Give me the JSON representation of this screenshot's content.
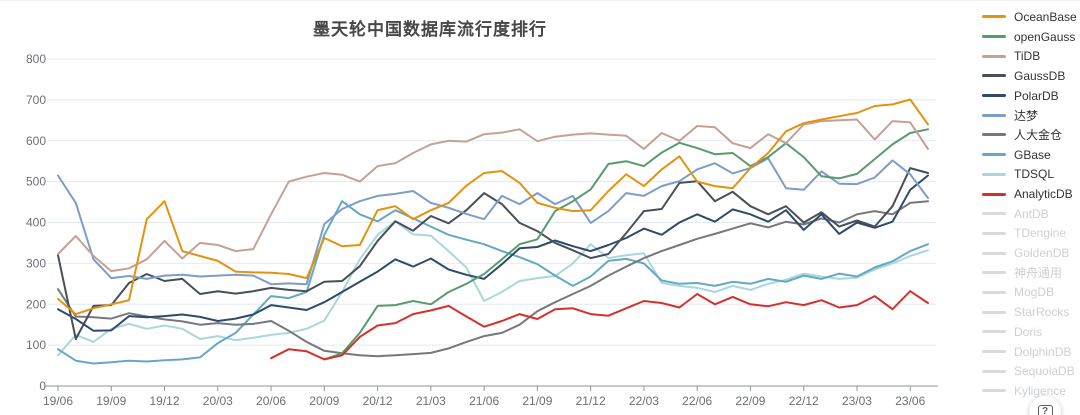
{
  "page": {
    "title": "墨天轮中国数据库流行度排行",
    "help_glyph": "?"
  },
  "chart_data": {
    "type": "line",
    "title": "墨天轮中国数据库流行度排行",
    "xlabel": "",
    "ylabel": "",
    "ylim": [
      0,
      800
    ],
    "y_ticks": [
      0,
      100,
      200,
      300,
      400,
      500,
      600,
      700,
      800
    ],
    "grid": true,
    "legend_position": "right",
    "x": [
      "19/06",
      "19/07",
      "19/08",
      "19/09",
      "19/10",
      "19/11",
      "19/12",
      "20/01",
      "20/02",
      "20/03",
      "20/04",
      "20/05",
      "20/06",
      "20/07",
      "20/08",
      "20/09",
      "20/10",
      "20/11",
      "20/12",
      "21/01",
      "21/02",
      "21/03",
      "21/04",
      "21/05",
      "21/06",
      "21/07",
      "21/08",
      "21/09",
      "21/10",
      "21/11",
      "21/12",
      "22/01",
      "22/02",
      "22/03",
      "22/04",
      "22/05",
      "22/06",
      "22/07",
      "22/08",
      "22/09",
      "22/10",
      "22/11",
      "22/12",
      "23/01",
      "23/02",
      "23/03",
      "23/04",
      "23/05",
      "23/06",
      "23/07"
    ],
    "x_tick_labels": [
      "19/06",
      "19/09",
      "19/12",
      "20/03",
      "20/06",
      "20/09",
      "20/12",
      "21/03",
      "21/06",
      "21/09",
      "21/12",
      "22/03",
      "22/06",
      "22/09",
      "22/12",
      "23/03",
      "23/06"
    ],
    "series": [
      {
        "name": "OceanBase",
        "color": "#e2930f",
        "values": [
          213,
          176,
          190,
          200,
          210,
          408,
          452,
          330,
          318,
          306,
          280,
          278,
          277,
          274,
          264,
          362,
          342,
          345,
          430,
          440,
          408,
          430,
          448,
          490,
          521,
          526,
          497,
          448,
          436,
          428,
          430,
          477,
          518,
          489,
          530,
          562,
          500,
          489,
          484,
          533,
          570,
          623,
          643,
          652,
          660,
          668,
          685,
          689,
          701,
          640
        ]
      },
      {
        "name": "openGauss",
        "color": "#5a9b6e",
        "values": [
          null,
          null,
          null,
          null,
          null,
          null,
          null,
          null,
          null,
          null,
          null,
          null,
          null,
          null,
          null,
          65,
          80,
          130,
          196,
          198,
          208,
          200,
          230,
          250,
          274,
          310,
          347,
          359,
          428,
          452,
          481,
          543,
          550,
          538,
          571,
          595,
          582,
          567,
          570,
          538,
          560,
          594,
          560,
          513,
          508,
          519,
          555,
          591,
          619,
          628
        ]
      },
      {
        "name": "TiDB",
        "color": "#c7a094",
        "values": [
          323,
          367,
          318,
          281,
          288,
          310,
          355,
          312,
          350,
          345,
          330,
          335,
          420,
          500,
          512,
          521,
          517,
          500,
          538,
          545,
          570,
          591,
          600,
          598,
          616,
          620,
          628,
          599,
          610,
          615,
          618,
          615,
          612,
          580,
          619,
          600,
          636,
          633,
          594,
          582,
          616,
          594,
          640,
          648,
          650,
          652,
          603,
          648,
          645,
          580
        ]
      },
      {
        "name": "GaussDB",
        "color": "#474f58",
        "values": [
          320,
          115,
          196,
          198,
          252,
          274,
          257,
          262,
          225,
          232,
          226,
          232,
          240,
          235,
          232,
          255,
          257,
          293,
          355,
          403,
          380,
          416,
          398,
          430,
          472,
          445,
          399,
          379,
          350,
          332,
          313,
          323,
          374,
          428,
          433,
          497,
          501,
          452,
          475,
          440,
          420,
          440,
          400,
          425,
          390,
          405,
          390,
          440,
          533,
          521
        ]
      },
      {
        "name": "PolarDB",
        "color": "#2f4b69",
        "values": [
          188,
          164,
          135,
          136,
          171,
          168,
          171,
          175,
          169,
          159,
          165,
          175,
          198,
          192,
          186,
          205,
          230,
          255,
          280,
          310,
          292,
          312,
          285,
          272,
          262,
          298,
          337,
          340,
          356,
          342,
          330,
          345,
          362,
          385,
          370,
          400,
          420,
          402,
          432,
          420,
          402,
          430,
          382,
          420,
          372,
          400,
          387,
          402,
          480,
          515
        ]
      },
      {
        "name": "达梦",
        "color": "#7c9cc9",
        "values": [
          515,
          448,
          310,
          264,
          269,
          262,
          270,
          272,
          268,
          270,
          272,
          270,
          249,
          251,
          249,
          396,
          433,
          452,
          465,
          470,
          477,
          448,
          436,
          421,
          408,
          465,
          445,
          472,
          445,
          465,
          399,
          428,
          472,
          465,
          489,
          501,
          530,
          545,
          520,
          533,
          557,
          484,
          480,
          525,
          495,
          494,
          510,
          552,
          518,
          460
        ]
      },
      {
        "name": "人大金仓",
        "color": "#75787c",
        "values": [
          237,
          170,
          168,
          165,
          178,
          170,
          163,
          158,
          150,
          154,
          150,
          152,
          159,
          135,
          108,
          86,
          80,
          75,
          73,
          75,
          78,
          81,
          92,
          108,
          122,
          130,
          150,
          183,
          205,
          225,
          245,
          270,
          292,
          313,
          330,
          345,
          360,
          372,
          385,
          398,
          388,
          402,
          395,
          410,
          400,
          420,
          428,
          420,
          448,
          452
        ]
      },
      {
        "name": "GBase",
        "color": "#64a8c4",
        "values": [
          90,
          62,
          55,
          58,
          62,
          60,
          63,
          65,
          70,
          105,
          130,
          175,
          220,
          215,
          230,
          370,
          452,
          420,
          403,
          430,
          410,
          390,
          370,
          358,
          347,
          330,
          315,
          298,
          270,
          245,
          268,
          306,
          311,
          300,
          258,
          250,
          252,
          245,
          255,
          250,
          262,
          255,
          270,
          262,
          275,
          268,
          290,
          305,
          330,
          347
        ]
      },
      {
        "name": "TDSQL",
        "color": "#a9d7dd",
        "values": [
          75,
          125,
          108,
          140,
          152,
          140,
          148,
          140,
          115,
          122,
          112,
          118,
          125,
          130,
          140,
          160,
          230,
          310,
          370,
          403,
          371,
          368,
          330,
          290,
          208,
          230,
          257,
          264,
          269,
          300,
          347,
          313,
          320,
          325,
          252,
          245,
          240,
          230,
          245,
          235,
          250,
          260,
          275,
          268,
          262,
          265,
          285,
          300,
          318,
          332
        ]
      },
      {
        "name": "AnalyticDB",
        "color": "#d4312d",
        "values": [
          null,
          null,
          null,
          null,
          null,
          null,
          null,
          null,
          null,
          null,
          null,
          null,
          68,
          90,
          85,
          65,
          75,
          120,
          148,
          154,
          176,
          185,
          196,
          170,
          145,
          159,
          176,
          164,
          188,
          190,
          176,
          172,
          190,
          208,
          203,
          192,
          225,
          200,
          218,
          200,
          195,
          205,
          198,
          210,
          192,
          198,
          220,
          188,
          232,
          203
        ]
      }
    ],
    "legend_inactive": [
      "AntDB",
      "TDengine",
      "GoldenDB",
      "神舟通用",
      "MogDB",
      "StarRocks",
      "Doris",
      "DolphinDB",
      "SequoiaDB",
      "Kyligence"
    ]
  },
  "axis_style": {
    "label_color": "#6e7079",
    "grid_color": "#e4eaf2",
    "axis_color": "#8e949b"
  }
}
